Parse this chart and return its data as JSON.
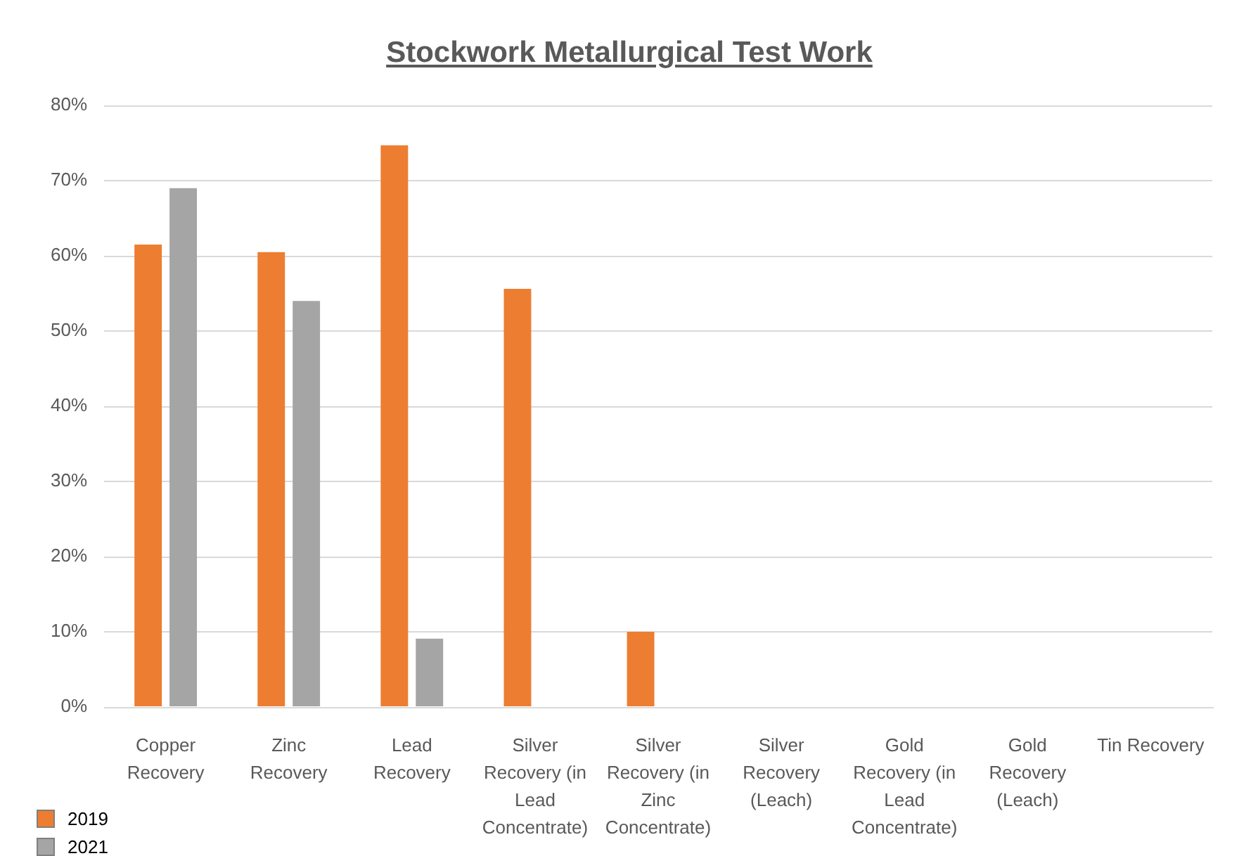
{
  "chart_data": {
    "type": "bar",
    "title": "Stockwork Metallurgical Test Work",
    "categories": [
      "Copper Recovery",
      "Zinc Recovery",
      "Lead Recovery",
      "Silver Recovery (in Lead Concentrate)",
      "Silver Recovery (in Zinc Concentrate)",
      "Silver Recovery (Leach)",
      "Gold Recovery (in Lead Concentrate)",
      "Gold Recovery (Leach)",
      "Tin Recovery"
    ],
    "series": [
      {
        "name": "2019",
        "color": "#ed7d31",
        "values": [
          61.5,
          60.5,
          74.7,
          55.6,
          10.0,
          null,
          null,
          null,
          null
        ]
      },
      {
        "name": "2021",
        "color": "#a5a5a5",
        "values": [
          69.0,
          54.0,
          9.1,
          null,
          null,
          null,
          null,
          null,
          null
        ]
      }
    ],
    "ylim": [
      0,
      80
    ],
    "yticks": [
      {
        "value": 0,
        "label": "0%"
      },
      {
        "value": 10,
        "label": "10%"
      },
      {
        "value": 20,
        "label": "20%"
      },
      {
        "value": 30,
        "label": "30%"
      },
      {
        "value": 40,
        "label": "40%"
      },
      {
        "value": 50,
        "label": "50%"
      },
      {
        "value": 60,
        "label": "60%"
      },
      {
        "value": 70,
        "label": "70%"
      },
      {
        "value": 80,
        "label": "80%"
      }
    ],
    "grid": "y",
    "legend": "bottom left"
  }
}
